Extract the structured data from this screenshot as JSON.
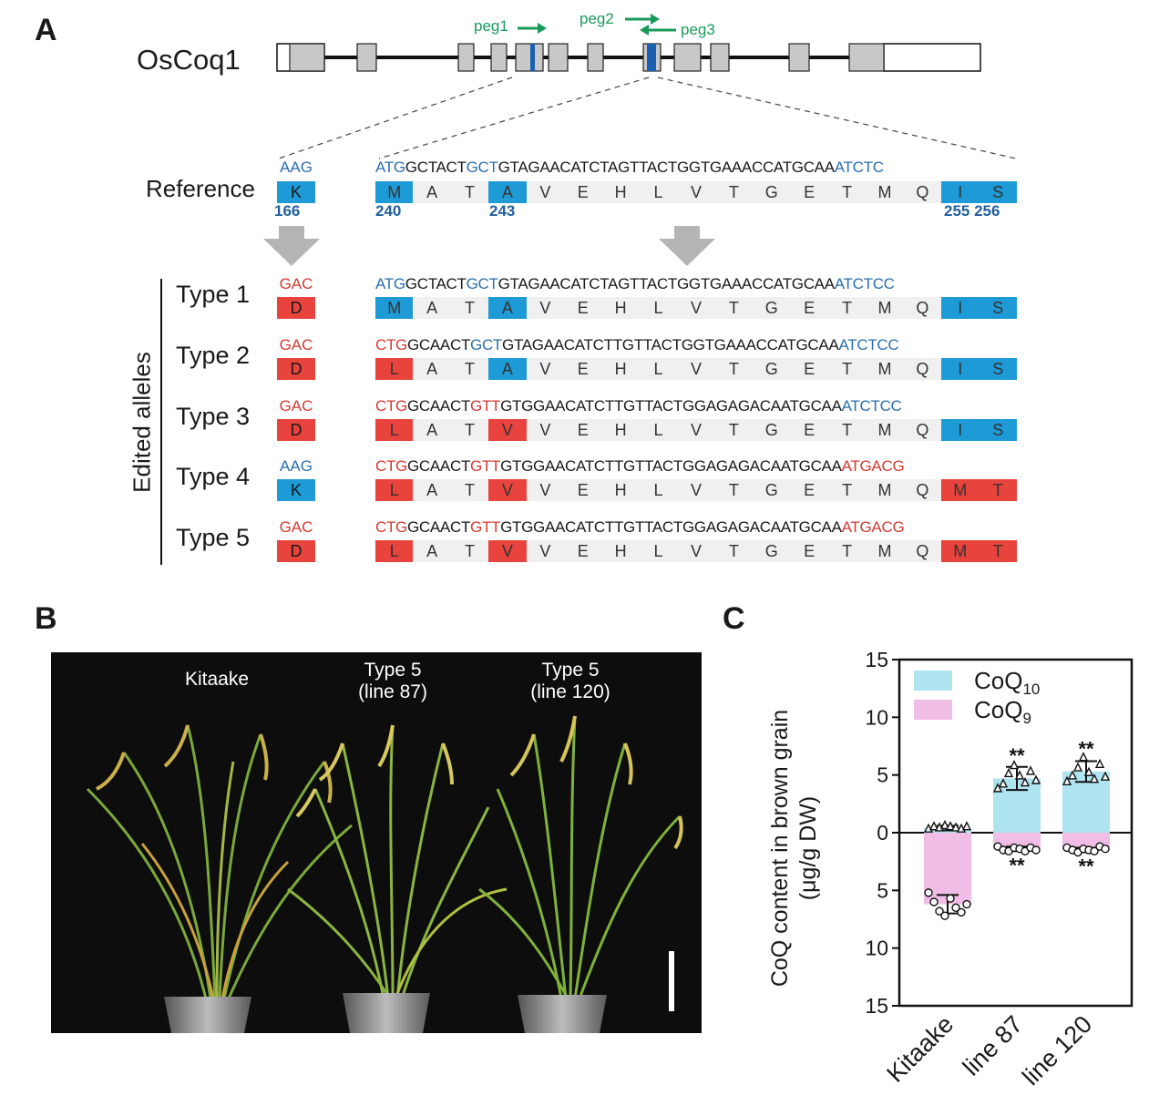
{
  "panels": {
    "a": "A",
    "b": "B",
    "c": "C"
  },
  "gene": {
    "name": "OsCoq1",
    "pegs": [
      "peg1",
      "peg2",
      "peg3"
    ]
  },
  "reference": {
    "label": "Reference",
    "codon": "AAG",
    "aa": "K",
    "pos_166": "166",
    "seq_prefix": "ATG",
    "seq_mid1": "GCTACT",
    "seq_gct": "GCT",
    "seq_mid2": "GTAGAACATCTAGTTACTGGTGAAACCATGCAA",
    "seq_suffix": "ATCTC",
    "aa_seq": [
      "M",
      "A",
      "T",
      "A",
      "V",
      "E",
      "H",
      "L",
      "V",
      "T",
      "G",
      "E",
      "T",
      "M",
      "Q",
      "I",
      "S"
    ],
    "pos_240": "240",
    "pos_243": "243",
    "pos_255": "255 256"
  },
  "edited_title": "Edited alleles",
  "alleles": [
    {
      "label": "Type 1",
      "codon": "GAC",
      "aa": "D",
      "p": "ATG",
      "m1": "GCTACT",
      "c": "GCT",
      "m2": "GTAGAACATCTAGTTACTGGTGAAACCATGCAA",
      "s": "ATCTCC",
      "aa_seq": [
        "M",
        "A",
        "T",
        "A",
        "V",
        "E",
        "H",
        "L",
        "V",
        "T",
        "G",
        "E",
        "T",
        "M",
        "Q",
        "I",
        "S"
      ]
    },
    {
      "label": "Type 2",
      "codon": "GAC",
      "aa": "D",
      "p": "CTG",
      "m1": "GCAACT",
      "c": "GCT",
      "m2": "GTAGAACATCTTGTTACTGGTGAAACCATGCAA",
      "s": "ATCTCC",
      "aa_seq": [
        "L",
        "A",
        "T",
        "A",
        "V",
        "E",
        "H",
        "L",
        "V",
        "T",
        "G",
        "E",
        "T",
        "M",
        "Q",
        "I",
        "S"
      ]
    },
    {
      "label": "Type 3",
      "codon": "GAC",
      "aa": "D",
      "p": "CTG",
      "m1": "GCAACT",
      "c": "GTT",
      "m2": "GTGGAACATCTTGTTACTGGAGAGACAATGCAA",
      "s": "ATCTCC",
      "aa_seq": [
        "L",
        "A",
        "T",
        "V",
        "V",
        "E",
        "H",
        "L",
        "V",
        "T",
        "G",
        "E",
        "T",
        "M",
        "Q",
        "I",
        "S"
      ]
    },
    {
      "label": "Type 4",
      "codon": "AAG",
      "aa": "K",
      "p": "CTG",
      "m1": "GCAACT",
      "c": "GTT",
      "m2": "GTGGAACATCTTGTTACTGGAGAGACAATGCAA",
      "s": "ATGACG",
      "aa_seq": [
        "L",
        "A",
        "T",
        "V",
        "V",
        "E",
        "H",
        "L",
        "V",
        "T",
        "G",
        "E",
        "T",
        "M",
        "Q",
        "M",
        "T"
      ]
    },
    {
      "label": "Type 5",
      "codon": "GAC",
      "aa": "D",
      "p": "CTG",
      "m1": "GCAACT",
      "c": "GTT",
      "m2": "GTGGAACATCTTGTTACTGGAGAGACAATGCAA",
      "s": "ATGACG",
      "aa_seq": [
        "L",
        "A",
        "T",
        "V",
        "V",
        "E",
        "H",
        "L",
        "V",
        "T",
        "G",
        "E",
        "T",
        "M",
        "Q",
        "M",
        "T"
      ]
    }
  ],
  "photo": {
    "kitaake": "Kitaake",
    "type5a": "Type 5",
    "line87": "(line 87)",
    "type5b": "Type 5",
    "line120": "(line 120)"
  },
  "colors": {
    "blue": "#1e9ad6",
    "red": "#e8433d",
    "green": "#1a9a5a",
    "coq10": "#aee3f0",
    "coq9": "#f0bde6"
  },
  "chart_data": {
    "type": "bar",
    "title": "",
    "ylabel": "CoQ content in brown grain",
    "ylabel2": "(μg/g DW)",
    "categories": [
      "Kitaake",
      "line 87",
      "line 120"
    ],
    "ylim": [
      -15,
      15
    ],
    "yticks": [
      "15",
      "10",
      "5",
      "0",
      "5",
      "10",
      "15"
    ],
    "legend": {
      "coq10": "CoQ10",
      "coq9": "CoQ9",
      "position": "top-left"
    },
    "series": [
      {
        "name": "CoQ10",
        "values": [
          0.4,
          4.7,
          5.3
        ],
        "errors": [
          0.2,
          1.0,
          0.9
        ],
        "points": [
          [
            0.3,
            0.5,
            0.4,
            0.6,
            0.5,
            0.4,
            0.3,
            0.5
          ],
          [
            3.8,
            4.2,
            5.1,
            5.8,
            4.9,
            4.3,
            5.3,
            4.5
          ],
          [
            4.4,
            4.9,
            5.6,
            6.5,
            5.2,
            4.6,
            5.9,
            4.8
          ]
        ]
      },
      {
        "name": "CoQ9",
        "values": [
          -6.2,
          -1.4,
          -1.5
        ],
        "errors": [
          0.8,
          0.2,
          0.2
        ],
        "points": [
          [
            -5.2,
            -6.0,
            -6.8,
            -7.2,
            -5.7,
            -6.5,
            -6.9,
            -6.2
          ],
          [
            -1.2,
            -1.5,
            -1.6,
            -1.3,
            -1.4,
            -1.6,
            -1.3,
            -1.5
          ],
          [
            -1.3,
            -1.5,
            -1.7,
            -1.4,
            -1.5,
            -1.6,
            -1.2,
            -1.4
          ]
        ]
      }
    ],
    "significance": [
      "**",
      "**",
      "**",
      "**"
    ]
  }
}
